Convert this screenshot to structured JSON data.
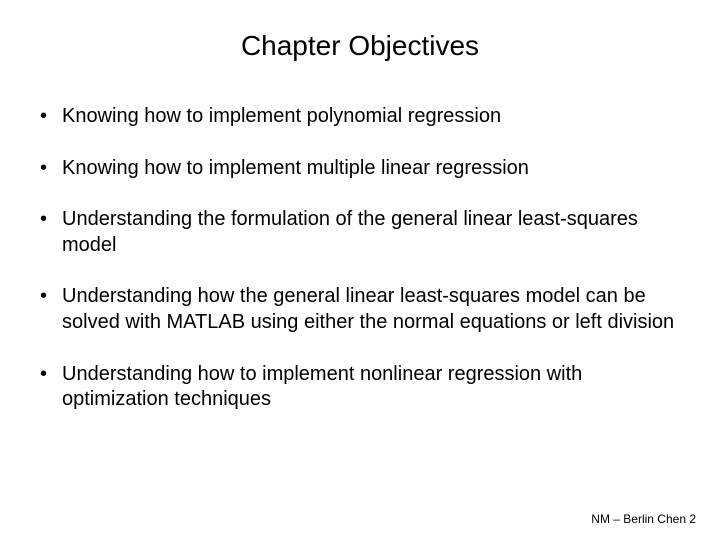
{
  "slide": {
    "title": "Chapter Objectives",
    "bullets": [
      "Knowing how to implement polynomial regression",
      "Knowing how to implement multiple linear regression",
      "Understanding the formulation of the general linear least-squares model",
      "Understanding how the general linear least-squares model can be solved with MATLAB using either the normal equations or left division",
      "Understanding how to implement nonlinear regression with optimization techniques"
    ],
    "footer": "NM – Berlin Chen 2"
  },
  "styling": {
    "background_color": "#ffffff",
    "text_color": "#000000",
    "title_fontsize": 28,
    "title_weight": "normal",
    "bullet_fontsize": 20,
    "footer_fontsize": 12,
    "font_family": "Arial",
    "bullet_marker": "•",
    "slide_width": 720,
    "slide_height": 540
  }
}
